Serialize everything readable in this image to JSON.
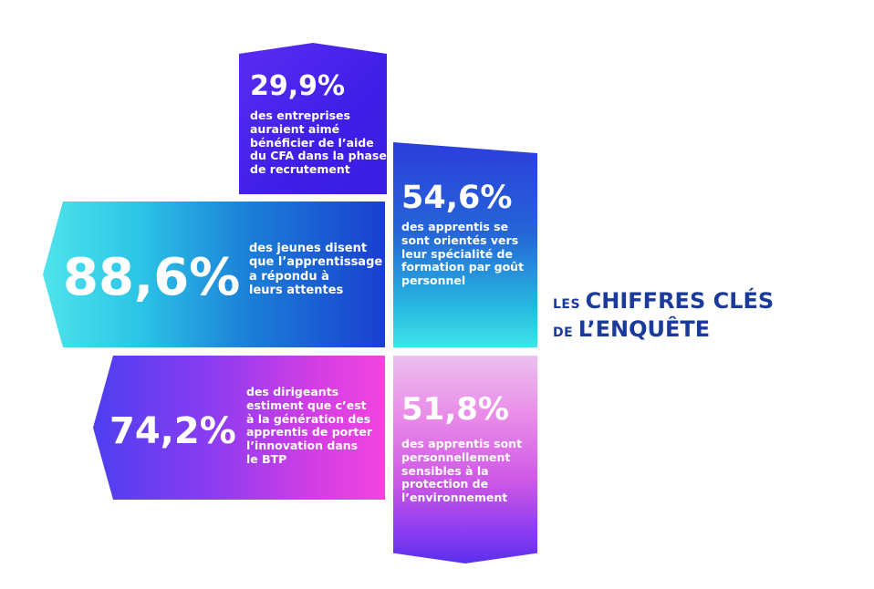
{
  "stats": [
    {
      "value": "29,9%",
      "text": "des entreprises\nauraient aimé\nbénéficier de l’aide\ndu CFA dans la phase\nde recrutement"
    },
    {
      "value": "88,6%",
      "text": "des jeunes disent\nque l’apprentissage\na répondu à\nleurs attentes"
    },
    {
      "value": "54,6%",
      "text": "des apprentis se\nsont orientés vers\nleur spécialité de\nformation par goût\npersonnel"
    },
    {
      "value": "74,2%",
      "text": "des dirigeants\nestiment que c’est\nà la génération des\napprentis de porter\nl’innovation dans\nle BTP"
    },
    {
      "value": "51,8%",
      "text": "des apprentis sont\npersonnellement\nsensibles à la\nprotection de\nl’environnement"
    }
  ],
  "title": {
    "line1_prefix": "LES",
    "line1_main": "CHIFFRES CLÉS",
    "line2_prefix": "DE",
    "line2_main": "L’ENQUÊTE"
  },
  "colors": {
    "title": "#1a3a9c",
    "blue_violet": "#3f1fe8",
    "cyan": "#4fe3ec",
    "magenta": "#f344df"
  }
}
